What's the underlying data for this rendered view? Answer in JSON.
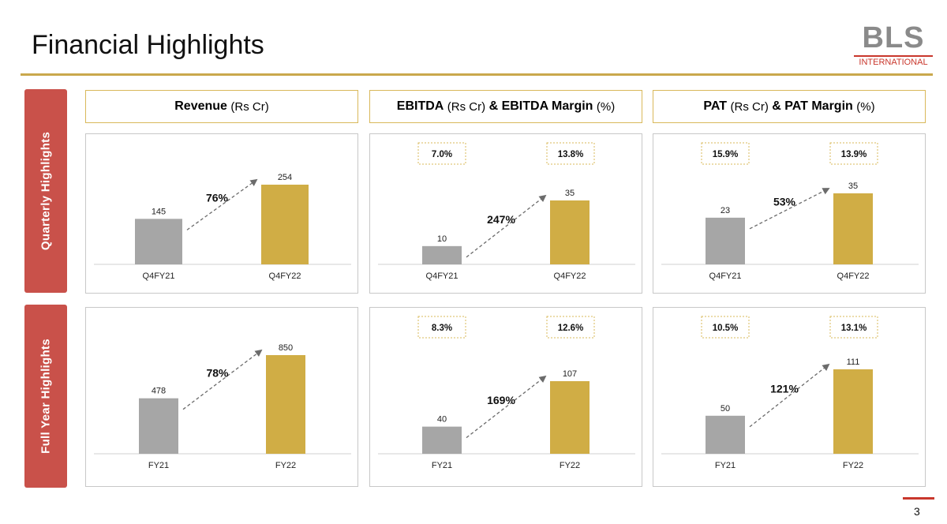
{
  "page": {
    "title": "Financial Highlights",
    "page_number": "3"
  },
  "logo": {
    "text": "BLS",
    "subtitle": "INTERNATIONAL"
  },
  "rows": {
    "quarterly": "Quarterly Highlights",
    "full_year": "Full Year Highlights"
  },
  "headers": {
    "revenue": {
      "bold1": "Revenue",
      "unit1": "(Rs Cr)",
      "bold2": "",
      "unit2": ""
    },
    "ebitda": {
      "bold1": "EBITDA",
      "unit1": "(Rs Cr)",
      "bold2": "& EBITDA Margin",
      "unit2": "(%)"
    },
    "pat": {
      "bold1": "PAT",
      "unit1": "(Rs Cr)",
      "bold2": "& PAT Margin",
      "unit2": "(%)"
    }
  },
  "colors": {
    "prior": "#a6a6a6",
    "current": "#d0ad45",
    "accent": "#c9514a",
    "border": "#d9b85a"
  },
  "chart_data": [
    {
      "id": "rev-q",
      "type": "bar",
      "title": "Revenue (Rs Cr) - Quarterly",
      "categories": [
        "Q4FY21",
        "Q4FY22"
      ],
      "values": [
        145,
        254
      ],
      "growth": "76%",
      "margins": [],
      "ylim": [
        0,
        254
      ]
    },
    {
      "id": "ebitda-q",
      "type": "bar",
      "title": "EBITDA (Rs Cr) & EBITDA Margin (%) - Quarterly",
      "categories": [
        "Q4FY21",
        "Q4FY22"
      ],
      "values": [
        10,
        35
      ],
      "growth": "247%",
      "margins": [
        "7.0%",
        "13.8%"
      ],
      "ylim": [
        0,
        35
      ]
    },
    {
      "id": "pat-q",
      "type": "bar",
      "title": "PAT (Rs Cr) & PAT Margin (%) - Quarterly",
      "categories": [
        "Q4FY21",
        "Q4FY22"
      ],
      "values": [
        23,
        35
      ],
      "growth": "53%",
      "margins": [
        "15.9%",
        "13.9%"
      ],
      "ylim": [
        0,
        35
      ]
    },
    {
      "id": "rev-fy",
      "type": "bar",
      "title": "Revenue (Rs Cr) - Full Year",
      "categories": [
        "FY21",
        "FY22"
      ],
      "values": [
        478,
        850
      ],
      "growth": "78%",
      "margins": [],
      "ylim": [
        0,
        850
      ]
    },
    {
      "id": "ebitda-fy",
      "type": "bar",
      "title": "EBITDA (Rs Cr) & EBITDA Margin (%) - Full Year",
      "categories": [
        "FY21",
        "FY22"
      ],
      "values": [
        40,
        107
      ],
      "growth": "169%",
      "margins": [
        "8.3%",
        "12.6%"
      ],
      "ylim": [
        0,
        107
      ]
    },
    {
      "id": "pat-fy",
      "type": "bar",
      "title": "PAT (Rs Cr) & PAT Margin (%) - Full Year",
      "categories": [
        "FY21",
        "FY22"
      ],
      "values": [
        50,
        111
      ],
      "growth": "121%",
      "margins": [
        "10.5%",
        "13.1%"
      ],
      "ylim": [
        0,
        111
      ]
    }
  ]
}
